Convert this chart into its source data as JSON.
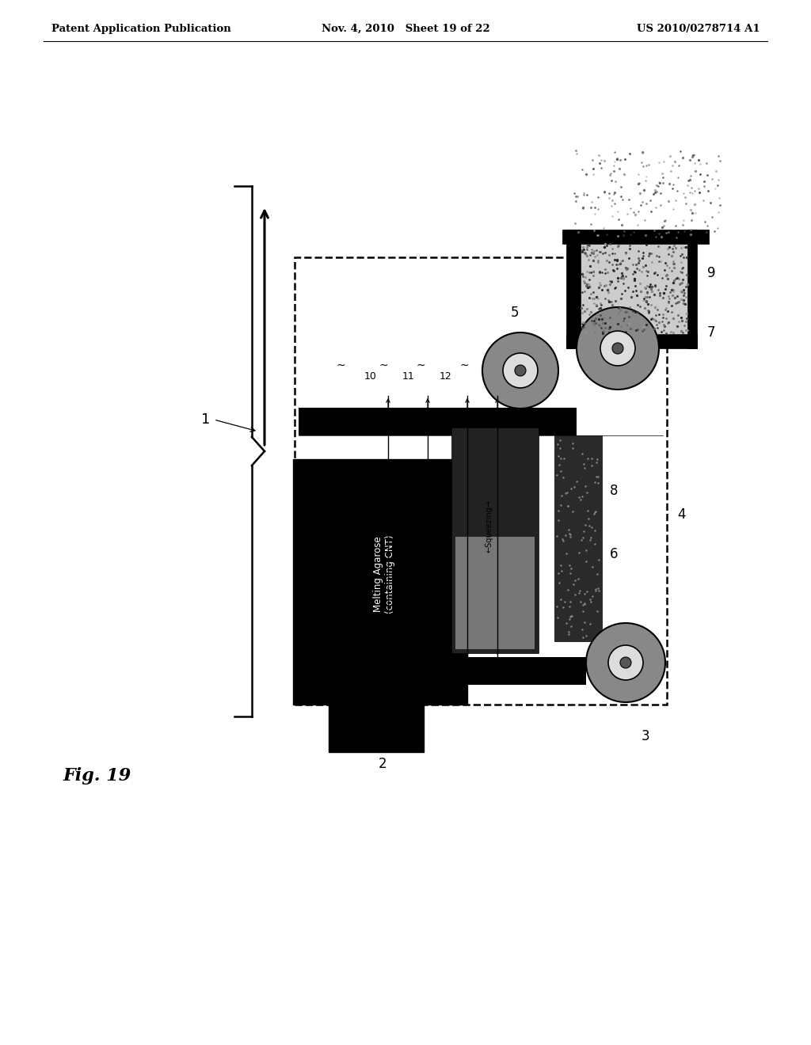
{
  "header_left": "Patent Application Publication",
  "header_mid": "Nov. 4, 2010   Sheet 19 of 22",
  "header_right": "US 2010/0278714 A1",
  "fig_label": "Fig. 19",
  "bg_color": "#ffffff"
}
